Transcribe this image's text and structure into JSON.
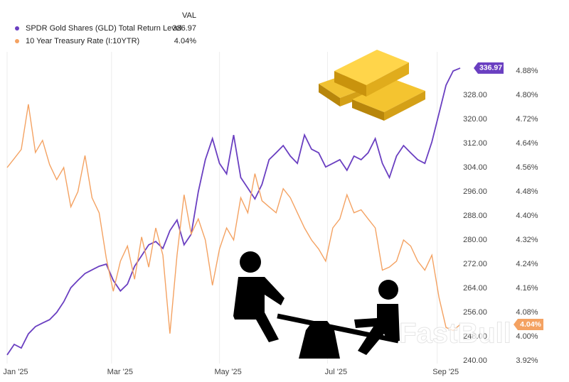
{
  "chart_data": {
    "type": "line",
    "legend_header": "VAL",
    "watermark": "FastBull",
    "x": [
      0,
      4,
      8,
      12,
      16,
      20,
      24,
      28,
      32,
      36,
      40,
      44,
      48,
      52,
      56,
      60,
      64,
      68,
      72,
      76,
      80,
      84,
      88,
      92,
      96,
      100,
      104,
      108,
      112,
      116,
      120,
      124,
      128,
      132,
      136,
      140,
      144,
      148,
      152,
      156,
      160,
      164,
      168,
      172,
      176,
      180,
      184,
      188,
      192,
      196,
      200,
      204,
      208,
      212,
      216,
      220,
      224,
      228,
      232,
      236,
      240,
      244,
      248,
      252,
      256
    ],
    "xlim": [
      0,
      260
    ],
    "xticks": [
      {
        "value": 0,
        "label": "Jan '25"
      },
      {
        "value": 59,
        "label": "Mar '25"
      },
      {
        "value": 120,
        "label": "May '25"
      },
      {
        "value": 181,
        "label": "Jul '25"
      },
      {
        "value": 243,
        "label": "Sep '25"
      }
    ],
    "ylim": [
      240,
      340
    ],
    "yticks": [
      {
        "value": 240,
        "label": "240.00"
      },
      {
        "value": 248,
        "label": "248.00"
      },
      {
        "value": 256,
        "label": "256.00"
      },
      {
        "value": 264,
        "label": "264.00"
      },
      {
        "value": 272,
        "label": "272.00"
      },
      {
        "value": 280,
        "label": "280.00"
      },
      {
        "value": 288,
        "label": "288.00"
      },
      {
        "value": 296,
        "label": "296.00"
      },
      {
        "value": 304,
        "label": "304.00"
      },
      {
        "value": 312,
        "label": "312.00"
      },
      {
        "value": 320,
        "label": "320.00"
      },
      {
        "value": 328,
        "label": "328.00"
      }
    ],
    "y2lim": [
      3.92,
      4.92
    ],
    "y2ticks": [
      {
        "value": 3.92,
        "label": "3.92%"
      },
      {
        "value": 4.0,
        "label": "4.00%"
      },
      {
        "value": 4.08,
        "label": "4.08%"
      },
      {
        "value": 4.16,
        "label": "4.16%"
      },
      {
        "value": 4.24,
        "label": "4.24%"
      },
      {
        "value": 4.32,
        "label": "4.32%"
      },
      {
        "value": 4.4,
        "label": "4.40%"
      },
      {
        "value": 4.48,
        "label": "4.48%"
      },
      {
        "value": 4.56,
        "label": "4.56%"
      },
      {
        "value": 4.64,
        "label": "4.64%"
      },
      {
        "value": 4.72,
        "label": "4.72%"
      },
      {
        "value": 4.8,
        "label": "4.80%"
      },
      {
        "value": 4.88,
        "label": "4.88%"
      }
    ],
    "grid": true,
    "series": [
      {
        "name": "SPDR Gold Shares (GLD) Total Return Level",
        "color": "#6a3fc1",
        "last_value_label": "336.97",
        "values": [
          241.9,
          245.4,
          244.2,
          248.9,
          251.3,
          252.5,
          253.6,
          256.0,
          259.5,
          264.2,
          266.6,
          268.9,
          270.1,
          271.3,
          272.0,
          266.6,
          263.1,
          265.4,
          271.3,
          274.8,
          278.4,
          279.5,
          277.2,
          283.1,
          286.6,
          278.4,
          281.9,
          296.0,
          306.6,
          313.6,
          305.4,
          301.9,
          314.8,
          300.7,
          297.2,
          293.6,
          298.4,
          306.6,
          308.9,
          311.3,
          307.8,
          305.4,
          314.8,
          310.1,
          308.9,
          304.2,
          305.4,
          306.6,
          303.1,
          307.8,
          306.6,
          308.9,
          313.6,
          305.4,
          300.7,
          307.8,
          311.3,
          308.9,
          306.6,
          305.4,
          312.5,
          321.9,
          331.3,
          336.0,
          336.97
        ]
      },
      {
        "name": "10 Year Treasury Rate (I:10YTR)",
        "color": "#f4a262",
        "axis": "y2",
        "last_value_label": "4.04%",
        "values": [
          4.56,
          4.59,
          4.62,
          4.77,
          4.61,
          4.65,
          4.57,
          4.52,
          4.56,
          4.43,
          4.48,
          4.6,
          4.46,
          4.41,
          4.26,
          4.15,
          4.25,
          4.3,
          4.19,
          4.33,
          4.23,
          4.36,
          4.27,
          4.01,
          4.27,
          4.47,
          4.34,
          4.39,
          4.32,
          4.17,
          4.29,
          4.36,
          4.32,
          4.46,
          4.41,
          4.54,
          4.45,
          4.43,
          4.41,
          4.49,
          4.46,
          4.41,
          4.36,
          4.32,
          4.29,
          4.25,
          4.36,
          4.39,
          4.47,
          4.41,
          4.42,
          4.39,
          4.36,
          4.22,
          4.23,
          4.25,
          4.32,
          4.3,
          4.25,
          4.22,
          4.27,
          4.13,
          4.03,
          4.02,
          4.04
        ]
      }
    ]
  }
}
